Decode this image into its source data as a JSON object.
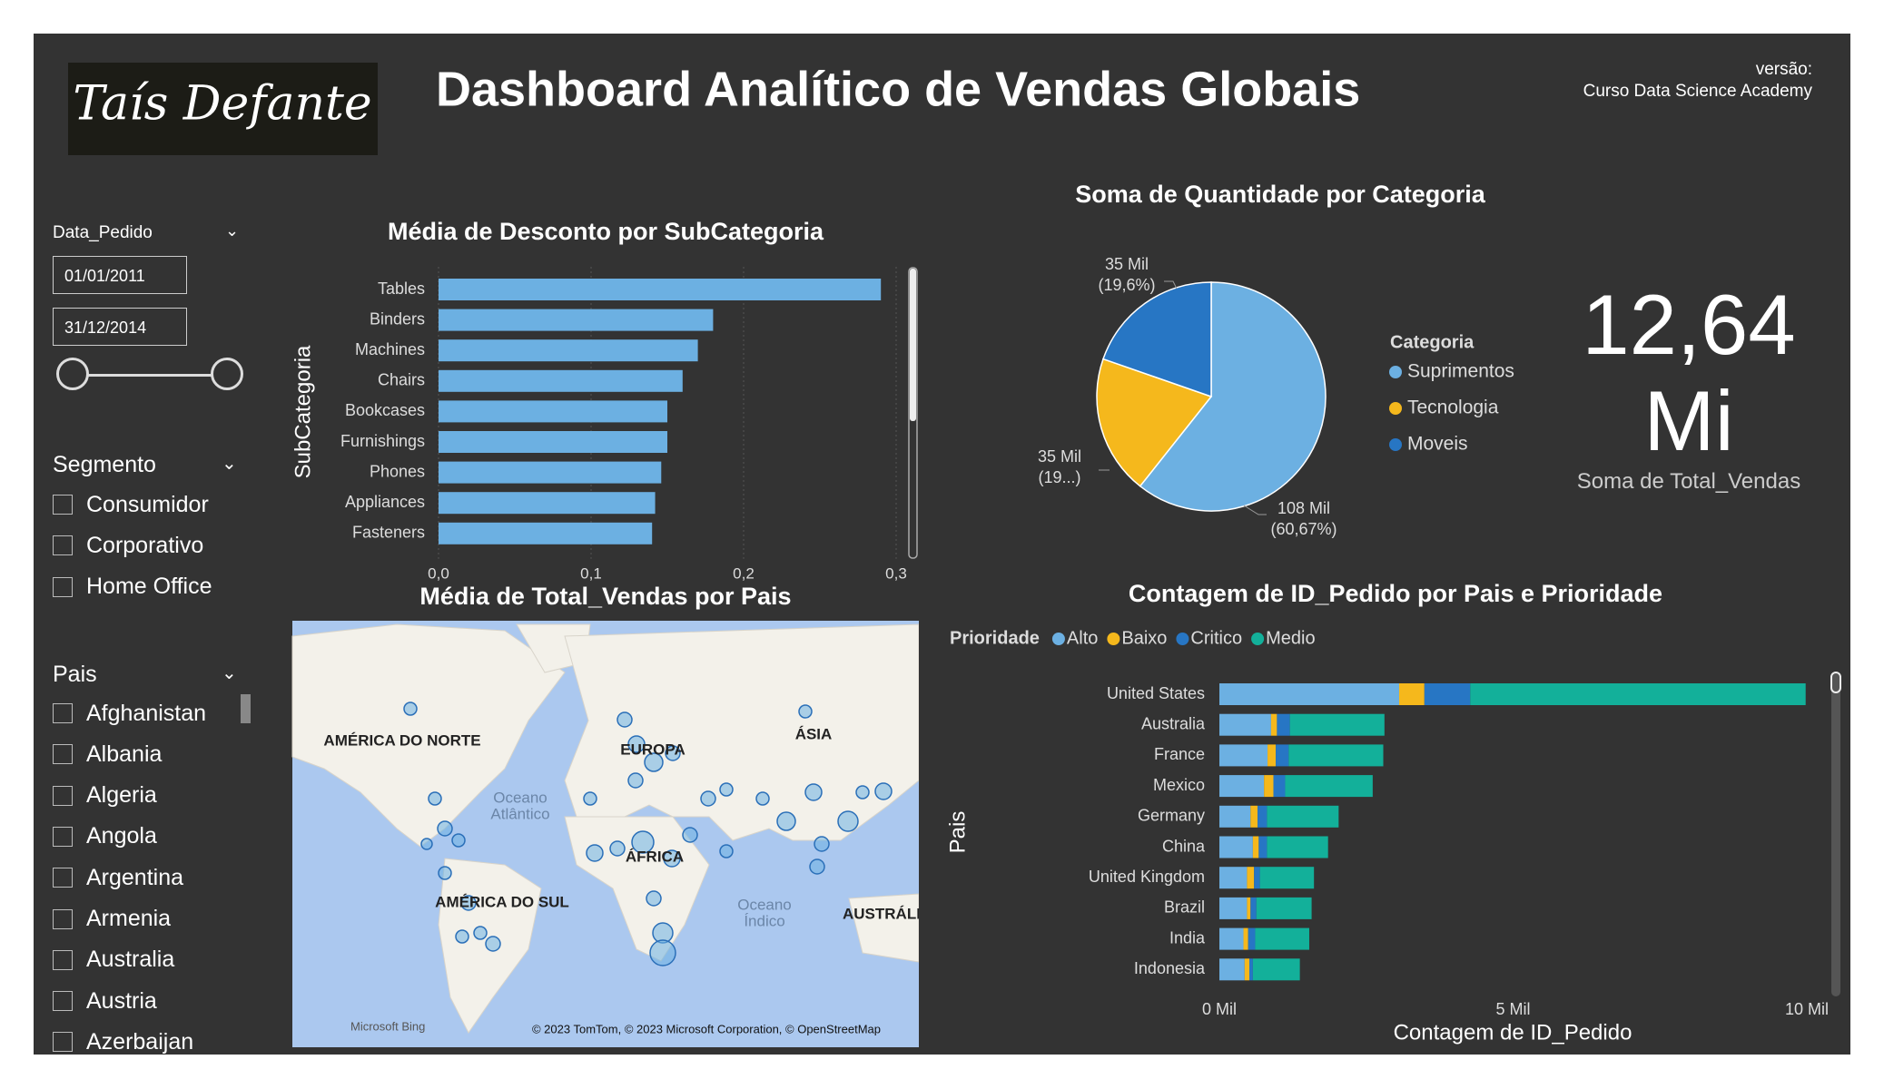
{
  "header": {
    "logo": "Taís Defante",
    "title": "Dashboard Analítico de Vendas Globais",
    "version_label": "versão:",
    "version": "Curso Data Science Academy"
  },
  "filters": {
    "date": {
      "label": "Data_Pedido",
      "start": "01/01/2011",
      "end": "31/12/2014"
    },
    "segment": {
      "label": "Segmento",
      "options": [
        "Consumidor",
        "Corporativo",
        "Home Office"
      ]
    },
    "country": {
      "label": "Pais",
      "options": [
        "Afghanistan",
        "Albania",
        "Algeria",
        "Angola",
        "Argentina",
        "Armenia",
        "Australia",
        "Austria",
        "Azerbaijan"
      ]
    }
  },
  "kpi": {
    "value": "12,64 Mi",
    "label": "Soma de Total_Vendas"
  },
  "map": {
    "title": "Média de Total_Vendas por Pais",
    "labels": [
      "AMÉRICA DO NORTE",
      "Oceano",
      "Atlântico",
      "AMÉRICA DO SUL",
      "EUROPA",
      "ÁSIA",
      "ÁFRICA",
      "Oceano",
      "Índico",
      "AUSTRÁLIA"
    ],
    "provider": "Microsoft Bing",
    "attribution": "© 2023 TomTom, © 2023 Microsoft Corporation, © OpenStreetMap"
  },
  "chart_data": [
    {
      "type": "bar",
      "title": "Média de Desconto por SubCategoria",
      "y_label": "SubCategoria",
      "categories": [
        "Tables",
        "Binders",
        "Machines",
        "Chairs",
        "Bookcases",
        "Furnishings",
        "Phones",
        "Appliances",
        "Fasteners"
      ],
      "values": [
        0.29,
        0.18,
        0.17,
        0.16,
        0.15,
        0.15,
        0.146,
        0.142,
        0.14
      ],
      "color": "#6cb0e2",
      "xlim": [
        0,
        0.3
      ],
      "xticks": [
        {
          "value": 0,
          "label": "0,0"
        },
        {
          "value": 0.1,
          "label": "0,1"
        },
        {
          "value": 0.2,
          "label": "0,2"
        },
        {
          "value": 0.3,
          "label": "0,3"
        }
      ],
      "grid": true
    },
    {
      "type": "pie",
      "title": "Soma de Quantidade por Categoria",
      "legend_title": "Categoria",
      "categories": [
        "Suprimentos",
        "Tecnologia",
        "Moveis"
      ],
      "values": [
        108000,
        35000,
        35000
      ],
      "value_labels": [
        "108 Mil",
        "35 Mil",
        "35 Mil"
      ],
      "percent_labels": [
        "(60,67%)",
        "(19...)",
        "(19,6%)"
      ],
      "colors": [
        "#6cb0e2",
        "#f5b81c",
        "#2776c4"
      ]
    },
    {
      "type": "stacked-bar",
      "title": "Contagem de ID_Pedido por Pais e Prioridade",
      "legend_title": "Prioridade",
      "x_label": "Contagem de ID_Pedido",
      "y_label": "Pais",
      "categories": [
        "United States",
        "Australia",
        "France",
        "Mexico",
        "Germany",
        "China",
        "United Kingdom",
        "Brazil",
        "India",
        "Indonesia"
      ],
      "series": [
        {
          "name": "Alto",
          "color": "#6cb0e2",
          "values": [
            3060,
            880,
            820,
            760,
            530,
            570,
            470,
            470,
            410,
            430
          ]
        },
        {
          "name": "Baixo",
          "color": "#f5b81c",
          "values": [
            430,
            100,
            140,
            160,
            120,
            100,
            120,
            60,
            80,
            80
          ]
        },
        {
          "name": "Critico",
          "color": "#2776c4",
          "values": [
            780,
            220,
            220,
            200,
            160,
            140,
            100,
            100,
            120,
            60
          ]
        },
        {
          "name": "Medio",
          "color": "#13b09a",
          "values": [
            5710,
            1610,
            1610,
            1490,
            1220,
            1040,
            920,
            940,
            920,
            800
          ]
        }
      ],
      "xlim": [
        0,
        10000
      ],
      "xticks": [
        {
          "value": 0,
          "label": "0 Mil"
        },
        {
          "value": 5000,
          "label": "5 Mil"
        },
        {
          "value": 10000,
          "label": "10 Mil"
        }
      ]
    }
  ]
}
